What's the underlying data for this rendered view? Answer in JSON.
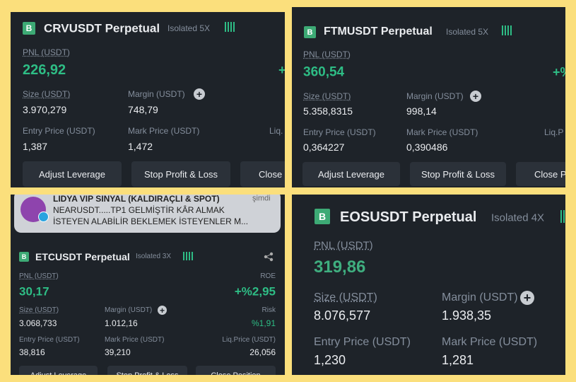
{
  "panels": [
    {
      "badge": "B",
      "symbol": "CRVUSDT Perpetual",
      "mode": "Isolated 5X",
      "pnl_label": "PNL (USDT)",
      "pnl": "226,92",
      "roe": "+",
      "size_label": "Size (USDT)",
      "size": "3.970,279",
      "margin_label": "Margin (USDT)",
      "margin": "748,79",
      "entry_label": "Entry Price (USDT)",
      "entry": "1,387",
      "mark_label": "Mark Price (USDT)",
      "mark": "1,472",
      "liq_label": "Liq.",
      "buttons": [
        "Adjust Leverage",
        "Stop Profit & Loss",
        "Close"
      ]
    },
    {
      "badge": "B",
      "symbol": "FTMUSDT Perpetual",
      "mode": "Isolated 5X",
      "pnl_label": "PNL (USDT)",
      "pnl": "360,54",
      "roe": "+%",
      "size_label": "Size (USDT)",
      "size": "5.358,8315",
      "margin_label": "Margin (USDT)",
      "margin": "998,14",
      "entry_label": "Entry Price (USDT)",
      "entry": "0,364227",
      "mark_label": "Mark Price (USDT)",
      "mark": "0,390486",
      "liq_label": "Liq.P",
      "buttons": [
        "Adjust Leverage",
        "Stop Profit & Loss",
        "Close P"
      ]
    },
    {
      "notification": {
        "title": "LIDYA VIP SINYAL (KALDIRAÇLI & SPOT)",
        "time": "şimdi",
        "lines": [
          "NEARUSDT.....TP1   GELMİŞTİR KÂR ALMAK",
          "İSTEYEN ALABİLİR BEKLEMEK  İSTEYENLER M..."
        ]
      },
      "badge": "B",
      "symbol": "ETCUSDT Perpetual",
      "mode": "Isolated 3X",
      "pnl_label": "PNL (USDT)",
      "pnl": "30,17",
      "roe_label": "ROE",
      "roe": "+%2,95",
      "size_label": "Size (USDT)",
      "size": "3.068,733",
      "margin_label": "Margin (USDT)",
      "margin": "1.012,16",
      "risk_label": "Risk",
      "risk": "%1,91",
      "entry_label": "Entry Price (USDT)",
      "entry": "38,816",
      "mark_label": "Mark Price (USDT)",
      "mark": "39,210",
      "liq_label": "Liq.Price (USDT)",
      "liq": "26,056",
      "buttons": [
        "Adjust Leverage",
        "Stop Profit & Loss",
        "Close Position"
      ]
    },
    {
      "badge": "B",
      "symbol": "EOSUSDT Perpetual",
      "mode": "Isolated 4X",
      "pnl_label": "PNL (USDT)",
      "pnl": "319,86",
      "size_label": "Size (USDT)",
      "size": "8.076,577",
      "margin_label": "Margin (USDT)",
      "margin": "1.938,35",
      "entry_label": "Entry Price (USDT)",
      "entry": "1,230",
      "mark_label": "Mark Price (USDT)",
      "mark": "1,281"
    }
  ]
}
